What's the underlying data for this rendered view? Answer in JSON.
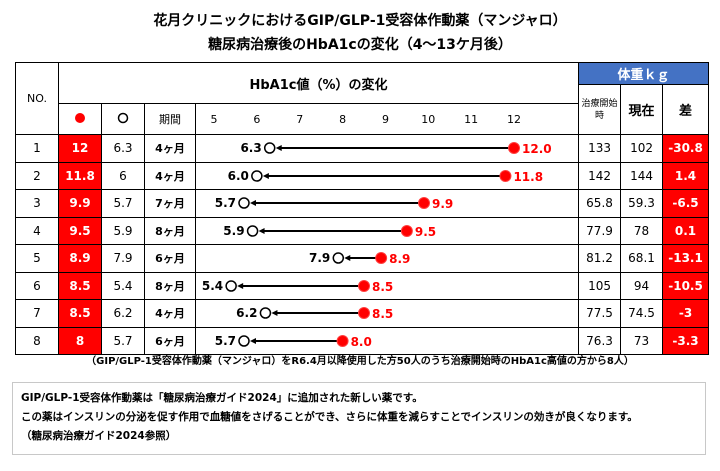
{
  "title_line1": "花月クリニックにおけるGIP/GLP-1受容体作動薬（マンジャロ）",
  "title_line2": "糖尿病治療後のHbA1cの変化（4～13ケ月後）",
  "headers": {
    "no": "NO.",
    "hba1c": "HbA1c値（%）の変化",
    "weight": "体重ｋｇ",
    "period": "期間",
    "start": "治療開始時",
    "current": "現在",
    "diff": "差"
  },
  "colors": {
    "red": "#ff0000",
    "blue": "#4472c4"
  },
  "chart_data": {
    "type": "dumbbell",
    "x_ticks": [
      5,
      6,
      7,
      8,
      9,
      10,
      11,
      12
    ],
    "xlim": [
      5,
      12
    ],
    "legend": [
      "red-filled-circle: 治療開始時",
      "open-circle: 現在"
    ],
    "rows": [
      {
        "no": "1",
        "before": "12",
        "after": "6.3",
        "period": "4ヶ月",
        "before_label": "12.0",
        "after_label": "6.3",
        "before_val": 12.0,
        "after_val": 6.3,
        "w_start": "133",
        "w_now": "102",
        "w_diff": "-30.8"
      },
      {
        "no": "2",
        "before": "11.8",
        "after": "6",
        "period": "4ヶ月",
        "before_label": "11.8",
        "after_label": "6.0",
        "before_val": 11.8,
        "after_val": 6.0,
        "w_start": "142",
        "w_now": "144",
        "w_diff": "1.4"
      },
      {
        "no": "3",
        "before": "9.9",
        "after": "5.7",
        "period": "7ヶ月",
        "before_label": "9.9",
        "after_label": "5.7",
        "before_val": 9.9,
        "after_val": 5.7,
        "w_start": "65.8",
        "w_now": "59.3",
        "w_diff": "-6.5"
      },
      {
        "no": "4",
        "before": "9.5",
        "after": "5.9",
        "period": "8ヶ月",
        "before_label": "9.5",
        "after_label": "5.9",
        "before_val": 9.5,
        "after_val": 5.9,
        "w_start": "77.9",
        "w_now": "78",
        "w_diff": "0.1"
      },
      {
        "no": "5",
        "before": "8.9",
        "after": "7.9",
        "period": "6ヶ月",
        "before_label": "8.9",
        "after_label": "7.9",
        "before_val": 8.9,
        "after_val": 7.9,
        "w_start": "81.2",
        "w_now": "68.1",
        "w_diff": "-13.1"
      },
      {
        "no": "6",
        "before": "8.5",
        "after": "5.4",
        "period": "8ヶ月",
        "before_label": "8.5",
        "after_label": "5.4",
        "before_val": 8.5,
        "after_val": 5.4,
        "w_start": "105",
        "w_now": "94",
        "w_diff": "-10.5"
      },
      {
        "no": "7",
        "before": "8.5",
        "after": "6.2",
        "period": "4ヶ月",
        "before_label": "8.5",
        "after_label": "6.2",
        "before_val": 8.5,
        "after_val": 6.2,
        "w_start": "77.5",
        "w_now": "74.5",
        "w_diff": "-3"
      },
      {
        "no": "8",
        "before": "8",
        "after": "5.7",
        "period": "6ヶ月",
        "before_label": "8.0",
        "after_label": "5.7",
        "before_val": 8.0,
        "after_val": 5.7,
        "w_start": "76.3",
        "w_now": "73",
        "w_diff": "-3.3"
      }
    ]
  },
  "footnote": "（GIP/GLP-1受容体作動薬（マンジャロ）をR6.4月以降使用した方50人のうち治療開始時のHbA1c高値の方から8人）",
  "info": [
    "GIP/GLP-1受容体作動薬は「糖尿病治療ガイド2024」に追加された新しい薬です。",
    "この薬はインスリンの分泌を促す作用で血糖値をさげることができ、さらに体重を減らすことでインスリンの効きが良くなります。",
    "（糖尿病治療ガイド2024参照）"
  ]
}
